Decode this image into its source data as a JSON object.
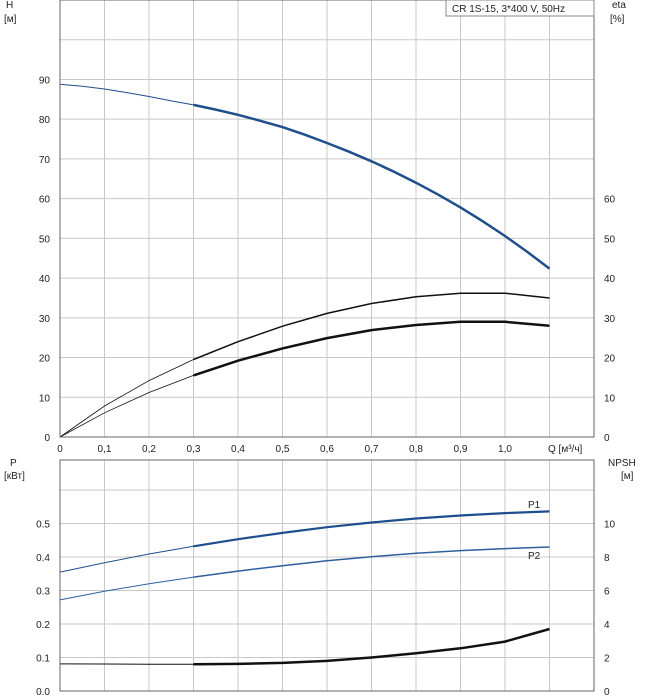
{
  "chart_data": [
    {
      "type": "line",
      "legend_box": "CR 1S-15, 3*400 V, 50Hz",
      "x_axis": {
        "label": "Q [м³/ч]",
        "ticks": [
          "0",
          "0,1",
          "0,2",
          "0,3",
          "0,4",
          "0,5",
          "0,6",
          "0,7",
          "0,8",
          "0,9",
          "1,0"
        ],
        "range": [
          0,
          1.2
        ]
      },
      "y_left": {
        "label": "H",
        "unit": "[м]",
        "ticks": [
          "0",
          "10",
          "20",
          "30",
          "40",
          "50",
          "60",
          "70",
          "80",
          "90"
        ],
        "range": [
          0,
          110
        ]
      },
      "y_right": {
        "label": "eta",
        "unit": "[%]",
        "ticks": [
          "0",
          "10",
          "20",
          "30",
          "40",
          "50",
          "60"
        ],
        "range": [
          0,
          110
        ]
      },
      "grid": true,
      "series": [
        {
          "axis": "left",
          "color": "#1f4e8c",
          "style": "head",
          "x": [
            0,
            0.05,
            0.1,
            0.15,
            0.2,
            0.25,
            0.3,
            0.35,
            0.4,
            0.45,
            0.5,
            0.55,
            0.6,
            0.65,
            0.7,
            0.75,
            0.8,
            0.85,
            0.9,
            0.95,
            1.0,
            1.05,
            1.1
          ],
          "y": [
            88.8,
            88.3,
            87.6,
            86.7,
            85.7,
            84.6,
            83.6,
            82.4,
            81.1,
            79.6,
            78.0,
            76.1,
            74.0,
            71.8,
            69.4,
            66.8,
            64.0,
            61.0,
            57.8,
            54.3,
            50.6,
            46.6,
            42.4
          ],
          "x_range": [
            0,
            1.1
          ]
        },
        {
          "axis": "right",
          "color": "#111111",
          "style": "eta-outer",
          "x": [
            0,
            0.1,
            0.2,
            0.3,
            0.4,
            0.5,
            0.6,
            0.7,
            0.8,
            0.9,
            1.0,
            1.1
          ],
          "y": [
            0,
            7.8,
            14.2,
            19.5,
            24.0,
            27.9,
            31.1,
            33.6,
            35.3,
            36.2,
            36.2,
            35.0
          ]
        },
        {
          "axis": "right",
          "color": "#111111",
          "style": "eta-inner",
          "x": [
            0,
            0.1,
            0.2,
            0.3,
            0.4,
            0.5,
            0.6,
            0.7,
            0.8,
            0.9,
            1.0,
            1.1
          ],
          "y": [
            0,
            6.1,
            11.2,
            15.5,
            19.2,
            22.3,
            24.9,
            26.9,
            28.2,
            29.0,
            29.0,
            28.0
          ]
        }
      ]
    },
    {
      "type": "line",
      "x_range": [
        0,
        1.2
      ],
      "y_left": {
        "label": "P",
        "unit": "[кВт]",
        "ticks": [
          "0.0",
          "0.1",
          "0.2",
          "0.3",
          "0.4",
          "0.5"
        ],
        "range": [
          0,
          0.6
        ]
      },
      "y_right": {
        "label": "NPSH",
        "unit": "[м]",
        "ticks": [
          "0",
          "2",
          "4",
          "6",
          "8",
          "10"
        ],
        "range": [
          0,
          12
        ]
      },
      "grid": true,
      "series": [
        {
          "name": "P1",
          "axis": "left",
          "color": "#1f4e8c",
          "x": [
            0,
            0.1,
            0.2,
            0.3,
            0.4,
            0.5,
            0.6,
            0.7,
            0.8,
            0.9,
            1.0,
            1.1
          ],
          "y": [
            0.355,
            0.383,
            0.409,
            0.432,
            0.453,
            0.472,
            0.489,
            0.503,
            0.515,
            0.524,
            0.531,
            0.536
          ]
        },
        {
          "name": "P2",
          "axis": "left",
          "color": "#2f5f9e",
          "x": [
            0,
            0.1,
            0.2,
            0.3,
            0.4,
            0.5,
            0.6,
            0.7,
            0.8,
            0.9,
            1.0,
            1.1
          ],
          "y": [
            0.272,
            0.298,
            0.32,
            0.34,
            0.358,
            0.374,
            0.389,
            0.401,
            0.411,
            0.419,
            0.425,
            0.43
          ]
        },
        {
          "axis": "right",
          "color": "#111111",
          "x": [
            0,
            0.1,
            0.2,
            0.3,
            0.4,
            0.5,
            0.6,
            0.7,
            0.8,
            0.9,
            1.0,
            1.1
          ],
          "y": [
            1.62,
            1.61,
            1.6,
            1.6,
            1.62,
            1.68,
            1.8,
            2.0,
            2.25,
            2.55,
            2.95,
            3.7
          ]
        }
      ]
    }
  ]
}
